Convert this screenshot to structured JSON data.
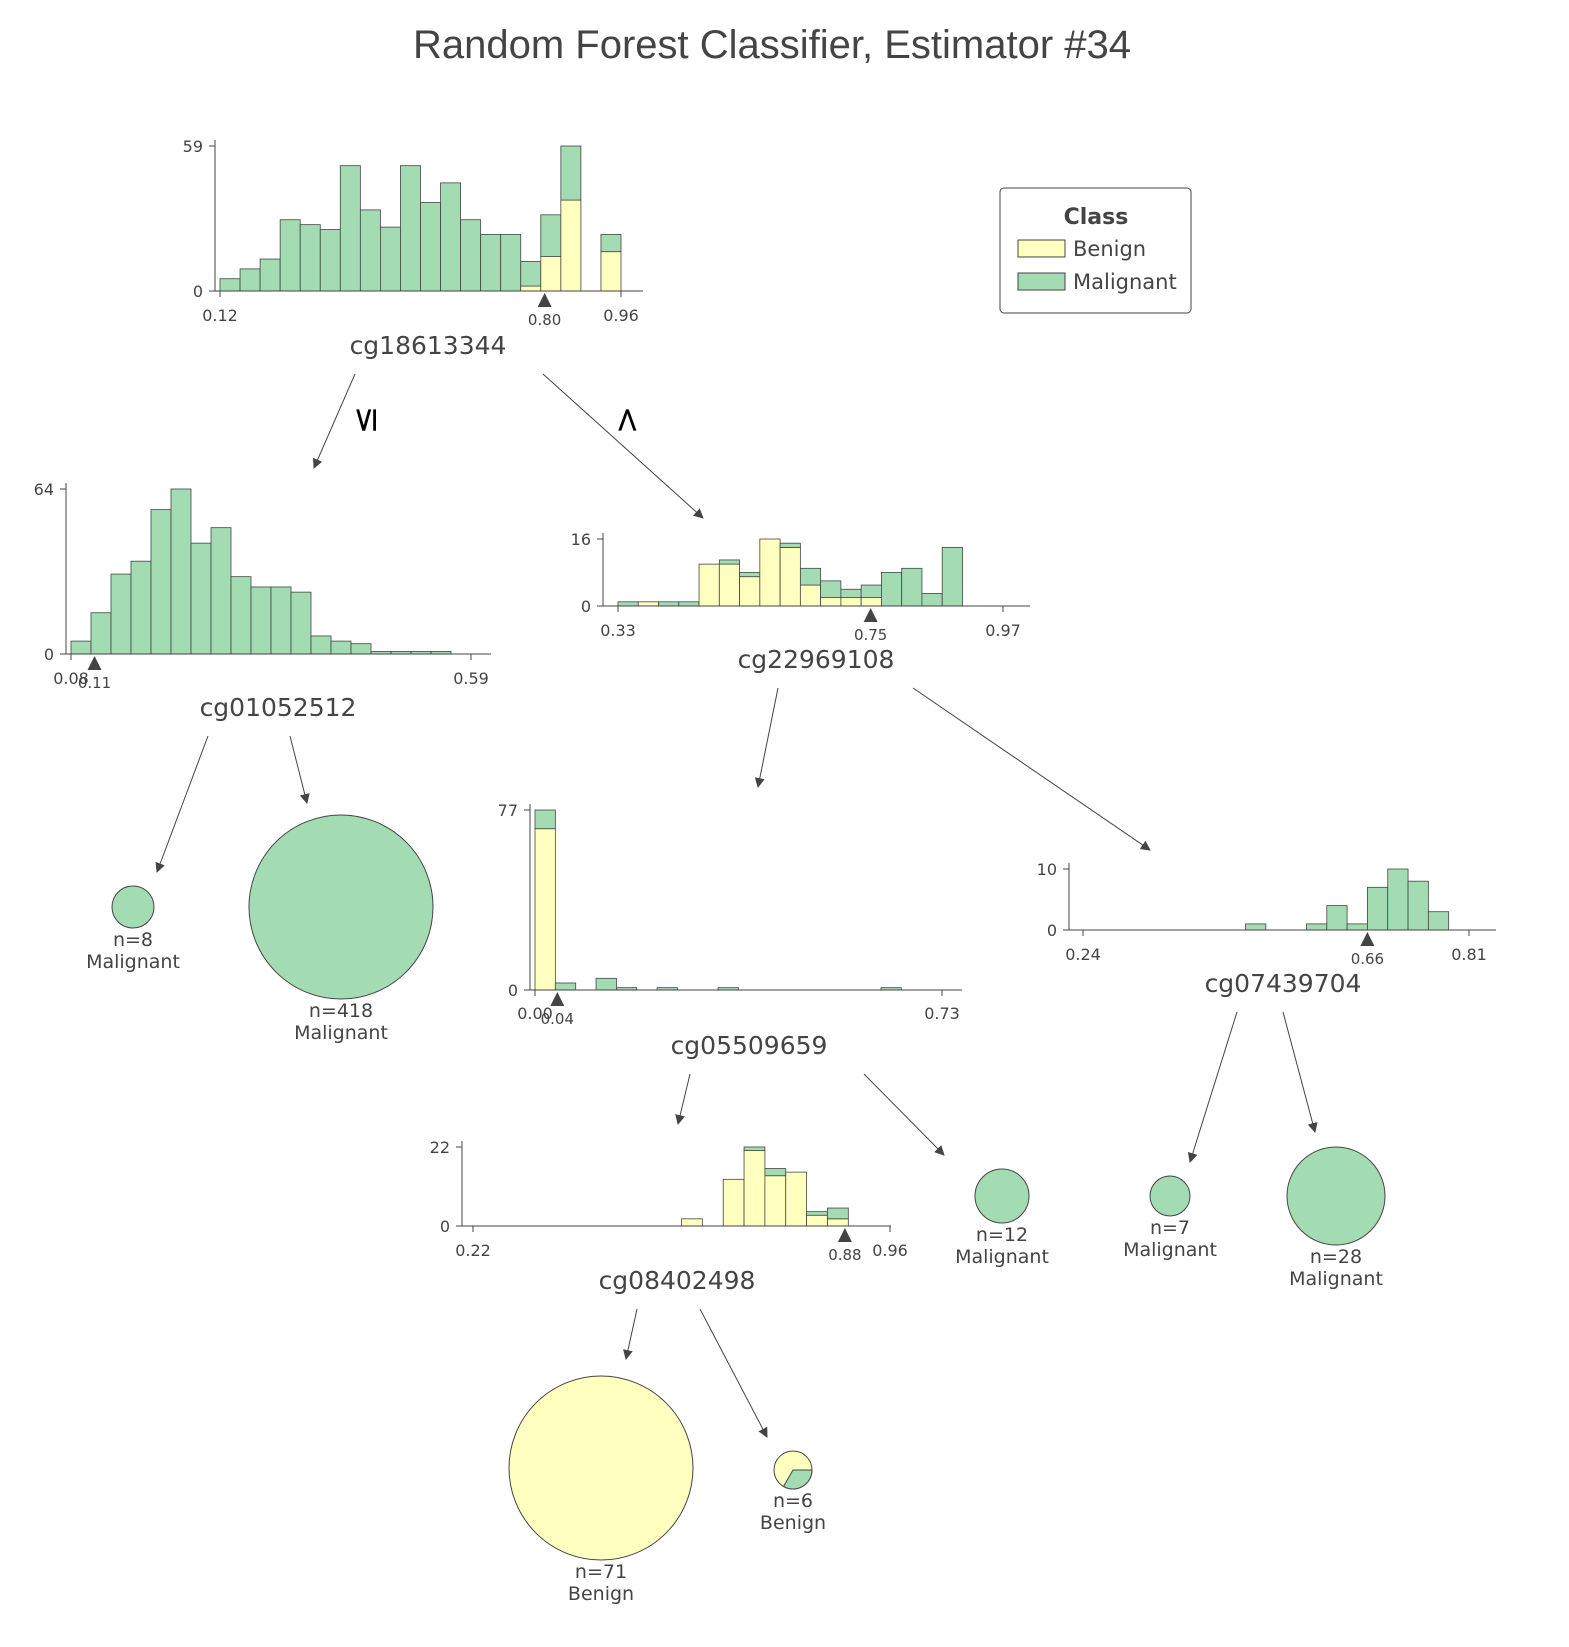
{
  "title": "Random Forest Classifier, Estimator #34",
  "colors": {
    "Benign": "#FFFFBF",
    "Malignant": "#A3DCB3",
    "outline": "#444444",
    "text": "#444444"
  },
  "legend": {
    "title": "Class",
    "items": [
      "Benign",
      "Malignant"
    ]
  },
  "edge_labels": {
    "left": "≤",
    "right": ">"
  },
  "chart_data": {
    "type": "decision-tree",
    "classes": [
      "Benign",
      "Malignant"
    ],
    "nodes": [
      {
        "id": "root",
        "feature": "cg18613344",
        "threshold": 0.8,
        "threshold_label": "0.80",
        "xlim": [
          0.12,
          0.96
        ],
        "x_ticks": [
          "0.12",
          "0.96"
        ],
        "ymax": 59,
        "y_ticks": [
          "59",
          "0"
        ],
        "bins": {
          "Benign": [
            0,
            0,
            0,
            0,
            0,
            0,
            0,
            0,
            0,
            0,
            0,
            0,
            0,
            0,
            0,
            2,
            14,
            37,
            0,
            16
          ],
          "Malignant": [
            5,
            9,
            13,
            29,
            27,
            25,
            51,
            33,
            26,
            51,
            36,
            44,
            29,
            23,
            23,
            10,
            17,
            22,
            0,
            7
          ]
        }
      },
      {
        "id": "left",
        "feature": "cg01052512",
        "threshold": 0.11,
        "threshold_label": "0.11",
        "xlim": [
          0.08,
          0.59
        ],
        "x_ticks": [
          "0.08",
          "0.59"
        ],
        "ymax": 64,
        "y_ticks": [
          "64",
          "0"
        ],
        "bins": {
          "Benign": [
            0,
            0,
            0,
            0,
            0,
            0,
            0,
            0,
            0,
            0,
            0,
            0,
            0,
            0,
            0,
            0,
            0,
            0,
            0,
            0
          ],
          "Malignant": [
            5,
            16,
            31,
            36,
            56,
            64,
            43,
            49,
            30,
            26,
            26,
            24,
            7,
            5,
            4,
            1,
            1,
            1,
            1,
            0
          ]
        }
      },
      {
        "id": "right",
        "feature": "cg22969108",
        "threshold": 0.75,
        "threshold_label": "0.75",
        "xlim": [
          0.33,
          0.97
        ],
        "x_ticks": [
          "0.33",
          "0.97"
        ],
        "ymax": 16,
        "y_ticks": [
          "16",
          "0"
        ],
        "bins": {
          "Benign": [
            0,
            1,
            0,
            0,
            10,
            10,
            7,
            16,
            14,
            5,
            2,
            2,
            2,
            0,
            0,
            0,
            0,
            0,
            0
          ],
          "Malignant": [
            1,
            0,
            1,
            1,
            0,
            1,
            1,
            0,
            1,
            4,
            4,
            2,
            3,
            8,
            9,
            3,
            14,
            0,
            0
          ]
        }
      },
      {
        "id": "rl",
        "feature": "cg05509659",
        "threshold": 0.04,
        "threshold_label": "0.04",
        "xlim": [
          0.0,
          0.73
        ],
        "x_ticks": [
          "0.00",
          "0.73"
        ],
        "ymax": 77,
        "y_ticks": [
          "77",
          "0"
        ],
        "bins": {
          "Benign": [
            69,
            0,
            0,
            0,
            0,
            0,
            0,
            0,
            0,
            0,
            0,
            0,
            0,
            0,
            0,
            0,
            0,
            0,
            0,
            0
          ],
          "Malignant": [
            8,
            3,
            0,
            5,
            1,
            0,
            1,
            0,
            0,
            1,
            0,
            0,
            0,
            0,
            0,
            0,
            0,
            1,
            0,
            0
          ]
        }
      },
      {
        "id": "rr",
        "feature": "cg07439704",
        "threshold": 0.66,
        "threshold_label": "0.66",
        "xlim": [
          0.24,
          0.81
        ],
        "x_ticks": [
          "0.24",
          "0.81"
        ],
        "ymax": 10,
        "y_ticks": [
          "10",
          "0"
        ],
        "bins": {
          "Benign": [
            0,
            0,
            0,
            0,
            0,
            0,
            0,
            0,
            0,
            0,
            0,
            0,
            0,
            0,
            0,
            0,
            0,
            0,
            0
          ],
          "Malignant": [
            0,
            0,
            0,
            0,
            0,
            0,
            0,
            0,
            1,
            0,
            0,
            1,
            4,
            1,
            7,
            10,
            8,
            3,
            0
          ]
        }
      },
      {
        "id": "rll",
        "feature": "cg08402498",
        "threshold": 0.88,
        "threshold_label": "0.88",
        "xlim": [
          0.22,
          0.96
        ],
        "x_ticks": [
          "0.22",
          "0.96"
        ],
        "ymax": 22,
        "y_ticks": [
          "22",
          "0"
        ],
        "bins": {
          "Benign": [
            0,
            0,
            0,
            0,
            0,
            0,
            0,
            0,
            0,
            0,
            2,
            0,
            13,
            21,
            14,
            15,
            3,
            2,
            0,
            0
          ],
          "Malignant": [
            0,
            0,
            0,
            0,
            0,
            0,
            0,
            0,
            0,
            0,
            0,
            0,
            0,
            1,
            2,
            0,
            1,
            3,
            0,
            0
          ]
        }
      }
    ],
    "leaves": [
      {
        "id": "leaf-ll",
        "n": 8,
        "n_label": "n=8",
        "class": "Malignant",
        "counts": {
          "Benign": 0,
          "Malignant": 8
        }
      },
      {
        "id": "leaf-lr",
        "n": 418,
        "n_label": "n=418",
        "class": "Malignant",
        "counts": {
          "Benign": 0,
          "Malignant": 418
        }
      },
      {
        "id": "leaf-rlr",
        "n": 12,
        "n_label": "n=12",
        "class": "Malignant",
        "counts": {
          "Benign": 0,
          "Malignant": 12
        }
      },
      {
        "id": "leaf-rrl",
        "n": 7,
        "n_label": "n=7",
        "class": "Malignant",
        "counts": {
          "Benign": 0,
          "Malignant": 7
        }
      },
      {
        "id": "leaf-rrr",
        "n": 28,
        "n_label": "n=28",
        "class": "Malignant",
        "counts": {
          "Benign": 0,
          "Malignant": 28
        }
      },
      {
        "id": "leaf-rlll",
        "n": 71,
        "n_label": "n=71",
        "class": "Benign",
        "counts": {
          "Benign": 71,
          "Malignant": 0
        }
      },
      {
        "id": "leaf-rllr",
        "n": 6,
        "n_label": "n=6",
        "class": "Benign",
        "counts": {
          "Benign": 4,
          "Malignant": 2
        }
      }
    ]
  }
}
